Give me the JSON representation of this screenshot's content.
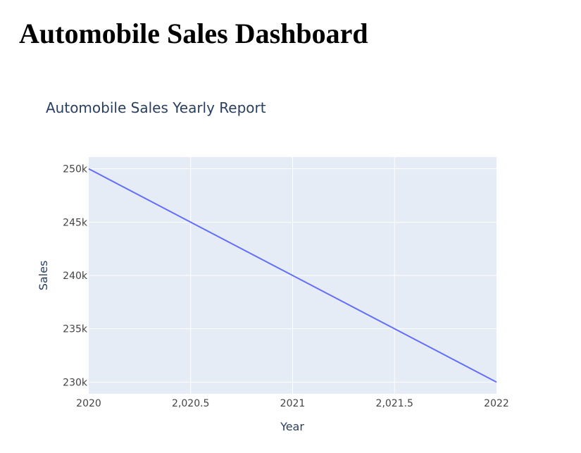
{
  "page": {
    "title": "Automobile Sales Dashboard"
  },
  "chart_data": {
    "type": "line",
    "title": "Automobile Sales Yearly Report",
    "xlabel": "Year",
    "ylabel": "Sales",
    "x": [
      2020,
      2021,
      2022
    ],
    "series": [
      {
        "values": [
          250000,
          240000,
          230000
        ],
        "color": "#636efa"
      }
    ],
    "xlim": [
      2020,
      2022
    ],
    "ylim": [
      228900,
      251100
    ],
    "xticks": [
      2020,
      2020.5,
      2021,
      2021.5,
      2022
    ],
    "xtick_labels": [
      "2020",
      "2,020.5",
      "2021",
      "2,021.5",
      "2022"
    ],
    "yticks": [
      230000,
      235000,
      240000,
      245000,
      250000
    ],
    "ytick_labels": [
      "230k",
      "235k",
      "240k",
      "245k",
      "250k"
    ],
    "grid": true,
    "legend": "none",
    "colors": {
      "plot_bg": "#e5ecf6",
      "grid": "#ffffff",
      "text": "#2a3f5f",
      "tick_text": "#444444"
    }
  }
}
